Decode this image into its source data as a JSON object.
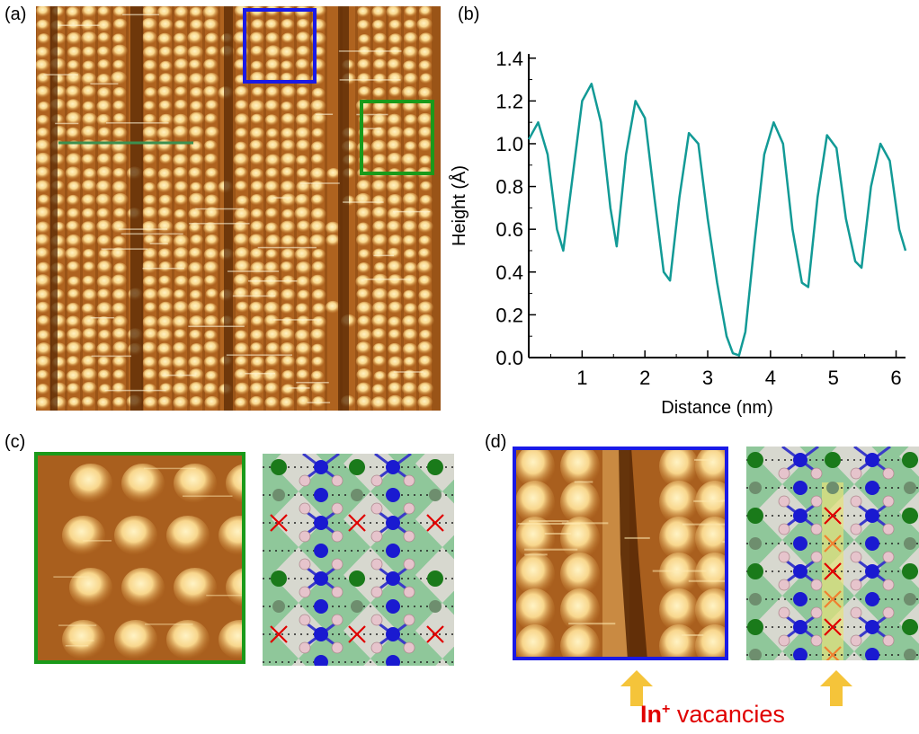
{
  "panels": {
    "a": {
      "label": "(a)"
    },
    "b": {
      "label": "(b)"
    },
    "c": {
      "label": "(c)"
    },
    "d": {
      "label": "(d)"
    }
  },
  "colors": {
    "stm_dark": "#5a2a05",
    "stm_mid": "#c27a2c",
    "stm_bright": "#f8d68c",
    "line_teal": "#129a96",
    "box_blue": "#1a1ae6",
    "box_green": "#1a9a1a",
    "profile_line": "#3d8f4f",
    "arrow_yellow": "#f5c43a",
    "vacancy_red": "#e00000"
  },
  "chart_data": {
    "type": "line",
    "xlabel": "Distance (nm)",
    "ylabel": "Height (Å)",
    "xlim": [
      0.15,
      6.15
    ],
    "ylim": [
      0,
      1.42
    ],
    "x_ticks": [
      1,
      2,
      3,
      4,
      5,
      6
    ],
    "y_ticks": [
      0.0,
      0.2,
      0.4,
      0.6,
      0.8,
      1.0,
      1.2,
      1.4
    ],
    "grid": false,
    "series": [
      {
        "x": [
          0.15,
          0.3,
          0.45,
          0.6,
          0.7,
          0.85,
          1.0,
          1.15,
          1.3,
          1.45,
          1.55,
          1.7,
          1.85,
          2.0,
          2.15,
          2.3,
          2.4,
          2.55,
          2.7,
          2.85,
          3.0,
          3.15,
          3.3,
          3.4,
          3.5,
          3.6,
          3.75,
          3.9,
          4.05,
          4.2,
          4.35,
          4.5,
          4.6,
          4.75,
          4.9,
          5.05,
          5.2,
          5.35,
          5.45,
          5.6,
          5.75,
          5.9,
          6.05,
          6.15
        ],
        "y": [
          1.02,
          1.1,
          0.95,
          0.6,
          0.5,
          0.85,
          1.2,
          1.28,
          1.1,
          0.7,
          0.52,
          0.95,
          1.2,
          1.12,
          0.75,
          0.4,
          0.36,
          0.75,
          1.05,
          1.0,
          0.65,
          0.35,
          0.1,
          0.02,
          0.01,
          0.12,
          0.55,
          0.95,
          1.1,
          1.0,
          0.6,
          0.35,
          0.33,
          0.75,
          1.04,
          0.98,
          0.65,
          0.45,
          0.42,
          0.8,
          1.0,
          0.92,
          0.6,
          0.5
        ]
      }
    ]
  },
  "footer": {
    "species": "In",
    "charge": "+",
    "word": " vacancies"
  }
}
